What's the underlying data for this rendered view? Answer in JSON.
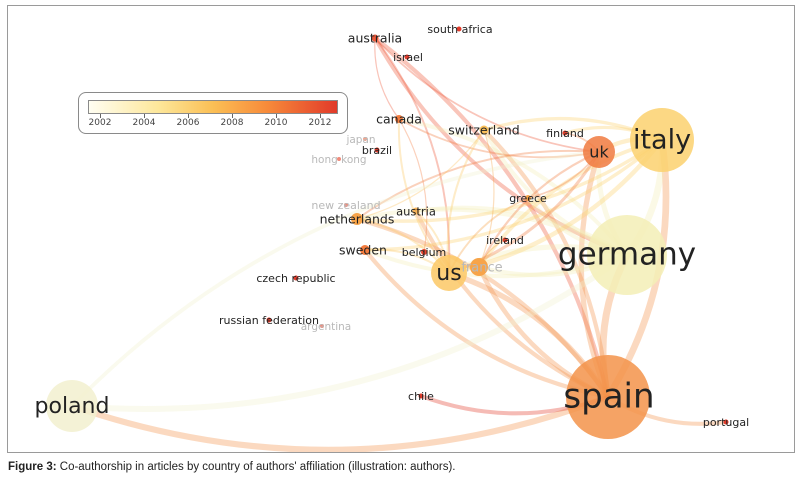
{
  "legend": {
    "ticks": [
      "2002",
      "2004",
      "2006",
      "2008",
      "2010",
      "2012"
    ],
    "colors": [
      "#fffef2",
      "#fde79a",
      "#fbbf55",
      "#f78a3a",
      "#e13a2a"
    ]
  },
  "network": {
    "nodes": [
      {
        "id": "australia",
        "label": "australia",
        "color": "#ee5a3a"
      },
      {
        "id": "south-africa",
        "label": "south africa",
        "color": "#e23b2b"
      },
      {
        "id": "israel",
        "label": "israel",
        "color": "#e23b2b"
      },
      {
        "id": "canada",
        "label": "canada",
        "color": "#f47c3e"
      },
      {
        "id": "switzerland",
        "label": "switzerland",
        "color": "#fbc15c"
      },
      {
        "id": "finland",
        "label": "finland",
        "color": "#e5432e"
      },
      {
        "id": "uk",
        "label": "uk",
        "color": "#f07a3f"
      },
      {
        "id": "italy",
        "label": "italy",
        "color": "#fbd16e"
      },
      {
        "id": "japan",
        "label": "japan",
        "color": "#f5a58e"
      },
      {
        "id": "brazil",
        "label": "brazil",
        "color": "#e23b2b"
      },
      {
        "id": "hong-kong",
        "label": "hong kong",
        "color": "#f08a7a"
      },
      {
        "id": "greece",
        "label": "greece",
        "color": "#f7a449"
      },
      {
        "id": "germany",
        "label": "germany",
        "color": "#f3efb6"
      },
      {
        "id": "new-zealand",
        "label": "new zealand",
        "color": "#f08a7a"
      },
      {
        "id": "austria",
        "label": "austria",
        "color": "#f9b45a"
      },
      {
        "id": "netherlands",
        "label": "netherlands",
        "color": "#f7a449"
      },
      {
        "id": "ireland",
        "label": "ireland",
        "color": "#e5432e"
      },
      {
        "id": "sweden",
        "label": "sweden",
        "color": "#f47c3e"
      },
      {
        "id": "belgium",
        "label": "belgium",
        "color": "#e5432e"
      },
      {
        "id": "france",
        "label": "france",
        "color": "#f7a449"
      },
      {
        "id": "us",
        "label": "us",
        "color": "#fbc865"
      },
      {
        "id": "czech-republic",
        "label": "czech republic",
        "color": "#e23b2b"
      },
      {
        "id": "russian-federation",
        "label": "russian federation",
        "color": "#e23b2b"
      },
      {
        "id": "argentina",
        "label": "argentina",
        "color": "#f08a7a"
      },
      {
        "id": "poland",
        "label": "poland",
        "color": "#f2f0cf"
      },
      {
        "id": "chile",
        "label": "chile",
        "color": "#e23b2b"
      },
      {
        "id": "spain",
        "label": "spain",
        "color": "#f3934a"
      },
      {
        "id": "portugal",
        "label": "portugal",
        "color": "#e23b2b"
      }
    ],
    "links": [
      [
        "australia",
        "uk"
      ],
      [
        "australia",
        "spain"
      ],
      [
        "australia",
        "germany"
      ],
      [
        "australia",
        "us"
      ],
      [
        "australia",
        "canada"
      ],
      [
        "spain",
        "germany"
      ],
      [
        "spain",
        "italy"
      ],
      [
        "spain",
        "uk"
      ],
      [
        "spain",
        "us"
      ],
      [
        "spain",
        "france"
      ],
      [
        "spain",
        "portugal"
      ],
      [
        "spain",
        "poland"
      ],
      [
        "spain",
        "netherlands"
      ],
      [
        "spain",
        "austria"
      ],
      [
        "spain",
        "switzerland"
      ],
      [
        "spain",
        "sweden"
      ],
      [
        "germany",
        "italy"
      ],
      [
        "germany",
        "uk"
      ],
      [
        "germany",
        "us"
      ],
      [
        "germany",
        "france"
      ],
      [
        "germany",
        "netherlands"
      ],
      [
        "germany",
        "switzerland"
      ],
      [
        "germany",
        "canada"
      ],
      [
        "germany",
        "greece"
      ],
      [
        "germany",
        "austria"
      ],
      [
        "germany",
        "sweden"
      ],
      [
        "italy",
        "uk"
      ],
      [
        "italy",
        "us"
      ],
      [
        "italy",
        "switzerland"
      ],
      [
        "italy",
        "netherlands"
      ],
      [
        "italy",
        "france"
      ],
      [
        "italy",
        "sweden"
      ],
      [
        "italy",
        "finland"
      ],
      [
        "uk",
        "us"
      ],
      [
        "uk",
        "netherlands"
      ],
      [
        "uk",
        "canada"
      ],
      [
        "uk",
        "finland"
      ],
      [
        "uk",
        "greece"
      ],
      [
        "uk",
        "france"
      ],
      [
        "us",
        "canada"
      ],
      [
        "us",
        "netherlands"
      ],
      [
        "us",
        "switzerland"
      ],
      [
        "us",
        "sweden"
      ],
      [
        "us",
        "france"
      ],
      [
        "us",
        "austria"
      ],
      [
        "france",
        "ireland"
      ],
      [
        "france",
        "switzerland"
      ],
      [
        "canada",
        "belgium"
      ],
      [
        "greece",
        "us"
      ],
      [
        "switzerland",
        "netherlands"
      ],
      [
        "poland",
        "germany"
      ],
      [
        "poland",
        "uk"
      ],
      [
        "chile",
        "spain"
      ]
    ]
  },
  "caption": {
    "bold": "Figure 3:",
    "text": " Co-authorship in articles by country of authors' affiliation (illustration: authors)."
  }
}
